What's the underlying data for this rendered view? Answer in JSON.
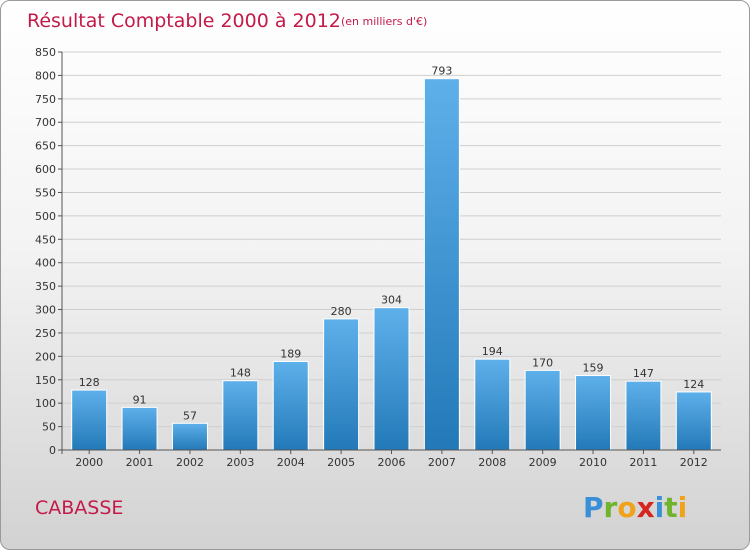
{
  "header": {
    "title": "Résultat Comptable 2000 à 2012",
    "unit": "(en milliers d'€)"
  },
  "footer": {
    "commune": "CABASSE",
    "logo": "Proxiti"
  },
  "colors": {
    "title": "#c41a4a",
    "bar_top": "#5eb0ea",
    "bar_bottom": "#2379b8",
    "grid": "#cfcfcf"
  },
  "chart_data": {
    "type": "bar",
    "title": "Résultat Comptable 2000 à 2012",
    "subtitle": "(en milliers d'€)",
    "xlabel": "",
    "ylabel": "",
    "categories": [
      "2000",
      "2001",
      "2002",
      "2003",
      "2004",
      "2005",
      "2006",
      "2007",
      "2008",
      "2009",
      "2010",
      "2011",
      "2012"
    ],
    "values": [
      128,
      91,
      57,
      148,
      189,
      280,
      304,
      793,
      194,
      170,
      159,
      147,
      124
    ],
    "ylim": [
      0,
      850
    ],
    "yticks": [
      0,
      50,
      100,
      150,
      200,
      250,
      300,
      350,
      400,
      450,
      500,
      550,
      600,
      650,
      700,
      750,
      800,
      850
    ],
    "grid": true,
    "legend": "none"
  }
}
